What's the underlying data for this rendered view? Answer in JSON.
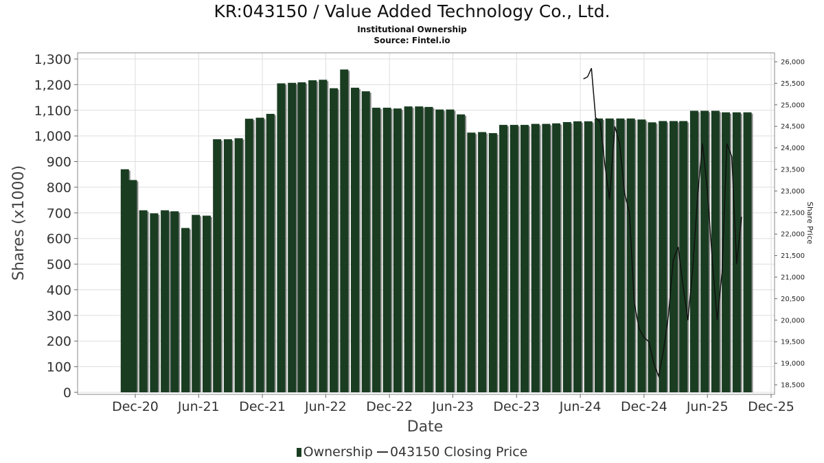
{
  "chart_data": {
    "type": "bar",
    "title": "KR:043150 / Value Added Technology Co., Ltd.",
    "subtitle": "Institutional Ownership",
    "source": "Source: Fintel.io",
    "xlabel": "Date",
    "ylabel": "Shares (x1000)",
    "y2label": "Share Price",
    "x_ticks": [
      "Dec-20",
      "Jun-21",
      "Dec-21",
      "Jun-22",
      "Dec-22",
      "Jun-23",
      "Dec-23",
      "Jun-24",
      "Dec-24",
      "Jun-25",
      "Dec-25"
    ],
    "ylim": [
      0,
      1300
    ],
    "y_ticks": [
      0,
      100,
      200,
      300,
      400,
      500,
      600,
      700,
      800,
      900,
      1000,
      1100,
      1200,
      1300
    ],
    "y2lim": [
      18300,
      26150
    ],
    "y2_ticks": [
      "18,500",
      "19,000",
      "19,500",
      "20,000",
      "20,500",
      "21,000",
      "21,500",
      "22,000",
      "22,500",
      "23,000",
      "23,500",
      "24,000",
      "24,500",
      "25,000",
      "25,500",
      "26,000"
    ],
    "grid": true,
    "colors": {
      "bar": "#1a3d22",
      "bar_shadow": "#8c8c8c",
      "price_line": "#111111",
      "grid": "#dddddd"
    },
    "series": [
      {
        "name": "Ownership",
        "x": [
          "2020-11-01",
          "2020-11-24",
          "2020-12-24",
          "2021-01-24",
          "2021-02-24",
          "2021-03-24",
          "2021-04-24",
          "2021-05-24",
          "2021-06-24",
          "2021-07-24",
          "2021-08-24",
          "2021-09-24",
          "2021-10-24",
          "2021-11-24",
          "2021-12-24",
          "2022-01-24",
          "2022-02-24",
          "2022-03-24",
          "2022-04-24",
          "2022-05-24",
          "2022-06-24",
          "2022-07-24",
          "2022-08-24",
          "2022-09-24",
          "2022-10-24",
          "2022-11-24",
          "2022-12-24",
          "2023-01-24",
          "2023-02-24",
          "2023-03-24",
          "2023-04-24",
          "2023-05-24",
          "2023-06-24",
          "2023-07-24",
          "2023-08-24",
          "2023-09-24",
          "2023-10-24",
          "2023-11-24",
          "2023-12-24",
          "2024-01-24",
          "2024-02-24",
          "2024-03-24",
          "2024-04-24",
          "2024-05-24",
          "2024-06-24",
          "2024-07-24",
          "2024-08-24",
          "2024-09-24",
          "2024-10-24",
          "2024-11-24",
          "2024-12-24",
          "2025-01-24",
          "2025-02-24",
          "2025-03-24",
          "2025-04-24",
          "2025-05-24",
          "2025-06-24",
          "2025-07-24",
          "2025-08-24",
          "2025-09-24"
        ],
        "values": [
          870,
          828,
          710,
          698,
          710,
          706,
          641,
          692,
          689,
          987,
          987,
          991,
          1067,
          1071,
          1086,
          1205,
          1207,
          1209,
          1217,
          1219,
          1186,
          1259,
          1188,
          1174,
          1110,
          1110,
          1107,
          1115,
          1115,
          1113,
          1103,
          1103,
          1084,
          1013,
          1015,
          1011,
          1043,
          1043,
          1043,
          1047,
          1047,
          1049,
          1054,
          1057,
          1057,
          1068,
          1068,
          1068,
          1068,
          1064,
          1053,
          1058,
          1058,
          1058,
          1098,
          1098,
          1098,
          1092,
          1092,
          1092
        ]
      },
      {
        "name": "043150 Closing Price",
        "x": [
          "2024-06-10",
          "2024-06-22",
          "2024-07-03",
          "2024-07-15",
          "2024-07-28",
          "2024-08-10",
          "2024-08-24",
          "2024-09-08",
          "2024-09-22",
          "2024-10-06",
          "2024-10-20",
          "2024-11-03",
          "2024-11-17",
          "2024-12-01",
          "2024-12-15",
          "2024-12-29",
          "2025-01-12",
          "2025-01-26",
          "2025-02-09",
          "2025-02-23",
          "2025-03-09",
          "2025-03-23",
          "2025-04-06",
          "2025-04-20",
          "2025-05-04",
          "2025-05-18",
          "2025-06-01",
          "2025-06-15",
          "2025-06-29",
          "2025-07-13",
          "2025-07-27",
          "2025-08-10",
          "2025-08-24",
          "2025-09-07"
        ],
        "values": [
          25600,
          25650,
          25850,
          24700,
          24600,
          23650,
          22800,
          24500,
          24100,
          22950,
          22500,
          20400,
          19800,
          19600,
          19500,
          19000,
          18700,
          19300,
          20100,
          21400,
          21700,
          20800,
          20000,
          21200,
          22900,
          24100,
          23000,
          21400,
          20000,
          21100,
          24100,
          23800,
          21300,
          22400
        ]
      }
    ]
  },
  "legend": {
    "ownership_label": "Ownership",
    "price_label": "043150 Closing Price"
  }
}
